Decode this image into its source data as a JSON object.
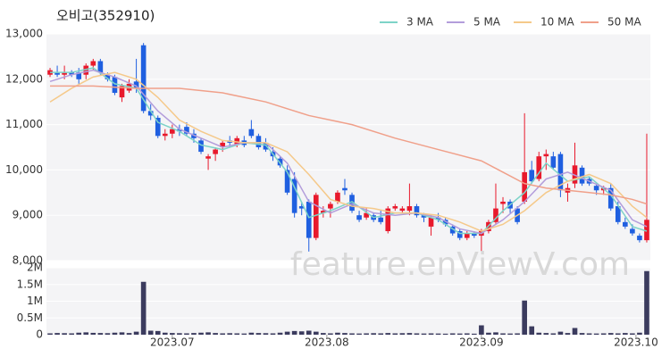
{
  "chart_data": [
    {
      "type": "candlestick",
      "title": "오비고(352910)",
      "watermark": "feature.enViewV.com",
      "xlim": [
        -0.5,
        83.5
      ],
      "ylim": [
        8000,
        13000
      ],
      "yticks": [
        {
          "value": 8000,
          "label": "8,000"
        },
        {
          "value": 9000,
          "label": "9,000"
        },
        {
          "value": 10000,
          "label": "10,000"
        },
        {
          "value": 11000,
          "label": "11,000"
        },
        {
          "value": 12000,
          "label": "12,000"
        },
        {
          "value": 13000,
          "label": "13,000"
        }
      ],
      "grid": true,
      "legend": "top-right",
      "up_color": "#e8192c",
      "down_color": "#1f5fe0",
      "open": [
        12100,
        12150,
        12100,
        12150,
        12150,
        12100,
        12300,
        12400,
        12100,
        12050,
        11600,
        11750,
        11950,
        12750,
        11300,
        11150,
        10750,
        10800,
        10900,
        10950,
        10800,
        10650,
        10250,
        10350,
        10500,
        10650,
        10550,
        10650,
        10900,
        10750,
        10600,
        10400,
        10250,
        10000,
        9800,
        9200,
        9300,
        8500,
        9050,
        9150,
        9300,
        9600,
        9450,
        9000,
        8950,
        9000,
        8950,
        8650,
        9150,
        9100,
        9100,
        9200,
        9000,
        8750,
        8950,
        8900,
        8750,
        8650,
        8500,
        8600,
        8550,
        8650,
        8850,
        9250,
        9300,
        9150,
        9300,
        10000,
        9800,
        10300,
        10300,
        10350,
        9500,
        9700,
        10050,
        9800,
        9650,
        9550,
        9600,
        9200,
        8850,
        8700,
        8550,
        8450
      ],
      "high": [
        12250,
        12300,
        12300,
        12200,
        12250,
        12350,
        12450,
        12450,
        12150,
        12100,
        11900,
        12000,
        12450,
        12800,
        11450,
        11200,
        10900,
        11000,
        11000,
        11050,
        10900,
        10700,
        10350,
        10500,
        10650,
        10750,
        10750,
        10750,
        11100,
        10800,
        10700,
        10500,
        10300,
        10100,
        9950,
        9300,
        9350,
        9500,
        9200,
        9300,
        9550,
        9800,
        9500,
        9100,
        9150,
        9050,
        9100,
        9200,
        9250,
        9200,
        9700,
        9250,
        9050,
        9000,
        9050,
        8950,
        8800,
        8700,
        8650,
        8650,
        8700,
        8900,
        9700,
        9400,
        9350,
        9200,
        11250,
        10200,
        10400,
        10450,
        10400,
        10400,
        9700,
        10600,
        10100,
        9850,
        9700,
        9650,
        9700,
        9300,
        8950,
        8800,
        8600,
        10800
      ],
      "low": [
        12050,
        12050,
        12000,
        12050,
        11900,
        12000,
        12200,
        12100,
        11950,
        11650,
        11500,
        11700,
        11700,
        11250,
        11100,
        10700,
        10650,
        10700,
        10750,
        10750,
        10600,
        10350,
        10000,
        10200,
        10400,
        10500,
        10500,
        10500,
        10700,
        10450,
        10400,
        10200,
        10050,
        9450,
        8950,
        9000,
        8200,
        8450,
        8950,
        8950,
        9250,
        9450,
        9050,
        8850,
        8900,
        8850,
        8800,
        8600,
        9100,
        9050,
        9000,
        8950,
        8850,
        8550,
        8850,
        8750,
        8550,
        8450,
        8450,
        8500,
        8200,
        8600,
        8800,
        9050,
        9050,
        8800,
        9250,
        9700,
        9750,
        10000,
        10000,
        9400,
        9300,
        9600,
        9650,
        9650,
        9450,
        9450,
        9100,
        8800,
        8700,
        8550,
        8400,
        8400
      ],
      "close": [
        12200,
        12100,
        12150,
        12100,
        12000,
        12300,
        12400,
        12150,
        12000,
        11700,
        11850,
        11900,
        11800,
        11300,
        11200,
        10750,
        10800,
        10900,
        10850,
        10800,
        10700,
        10400,
        10300,
        10450,
        10600,
        10600,
        10700,
        10550,
        10750,
        10500,
        10450,
        10300,
        10100,
        9500,
        9050,
        9150,
        8500,
        9450,
        9100,
        9250,
        9500,
        9550,
        9100,
        8900,
        9050,
        8900,
        8850,
        9150,
        9200,
        9150,
        9200,
        9000,
        8950,
        8950,
        8900,
        8800,
        8600,
        8500,
        8600,
        8550,
        8650,
        8850,
        9150,
        9300,
        9150,
        8850,
        9950,
        9750,
        10300,
        10350,
        10050,
        9550,
        9600,
        10100,
        9700,
        9700,
        9550,
        9600,
        9150,
        8850,
        8750,
        8600,
        8450,
        8900
      ],
      "series": [
        {
          "name": "3 MA",
          "color": "#7dd3c8",
          "x": [
            0,
            3,
            6,
            9,
            12,
            15,
            18,
            21,
            24,
            27,
            30,
            33,
            36,
            39,
            42,
            45,
            48,
            51,
            54,
            57,
            60,
            63,
            66,
            69,
            72,
            75,
            78,
            81,
            83
          ],
          "values": [
            12150,
            12150,
            12250,
            11900,
            11800,
            11050,
            10850,
            10550,
            10450,
            10600,
            10550,
            9950,
            8950,
            9100,
            9300,
            8950,
            9050,
            9050,
            8900,
            8600,
            8600,
            9100,
            9500,
            10150,
            9750,
            9850,
            9450,
            8750,
            8650
          ]
        },
        {
          "name": "5 MA",
          "color": "#b39ddb",
          "x": [
            0,
            3,
            6,
            9,
            12,
            15,
            18,
            21,
            24,
            27,
            30,
            33,
            36,
            39,
            42,
            45,
            48,
            51,
            54,
            57,
            60,
            63,
            66,
            69,
            72,
            75,
            78,
            81,
            83
          ],
          "values": [
            11950,
            12100,
            12200,
            12050,
            11850,
            11300,
            10900,
            10700,
            10500,
            10600,
            10600,
            10150,
            9300,
            9050,
            9250,
            9050,
            9000,
            9050,
            8950,
            8700,
            8600,
            8900,
            9300,
            9800,
            9950,
            9750,
            9550,
            8900,
            8750
          ]
        },
        {
          "name": "10 MA",
          "color": "#f5c98a",
          "x": [
            0,
            3,
            6,
            9,
            12,
            15,
            18,
            21,
            24,
            27,
            30,
            33,
            36,
            39,
            42,
            45,
            48,
            51,
            54,
            57,
            60,
            63,
            66,
            69,
            72,
            75,
            78,
            81,
            83
          ],
          "values": [
            11500,
            11800,
            12050,
            12150,
            12000,
            11600,
            11100,
            10850,
            10650,
            10600,
            10600,
            10400,
            9900,
            9350,
            9200,
            9150,
            9050,
            9050,
            9000,
            8850,
            8650,
            8800,
            9100,
            9500,
            9750,
            9900,
            9700,
            9200,
            8950
          ]
        },
        {
          "name": "50 MA",
          "color": "#f0a08a",
          "x": [
            0,
            6,
            12,
            18,
            24,
            30,
            36,
            42,
            48,
            54,
            60,
            63,
            66,
            69,
            72,
            75,
            78,
            81,
            83
          ],
          "values": [
            11850,
            11850,
            11800,
            11800,
            11700,
            11500,
            11200,
            11000,
            10700,
            10450,
            10200,
            9950,
            9700,
            9600,
            9550,
            9500,
            9450,
            9350,
            9250
          ]
        }
      ]
    },
    {
      "type": "bar",
      "color": "#3b3b5e",
      "xlim": [
        -0.5,
        83.5
      ],
      "ylim": [
        0,
        2000000
      ],
      "yticks": [
        0,
        {
          "value": 500000,
          "label": "0.5M"
        },
        {
          "value": 1000000,
          "label": "1M"
        },
        {
          "value": 1500000,
          "label": "1.5M"
        },
        {
          "value": 2000000,
          "label": "2M"
        }
      ],
      "xticks": [
        {
          "value": 17,
          "label": "2023.07"
        },
        {
          "value": 38.5,
          "label": "2023.08"
        },
        {
          "value": 60,
          "label": "2023.09"
        },
        {
          "value": 81.5,
          "label": "2023.10"
        }
      ],
      "values": [
        40000,
        50000,
        45000,
        40000,
        60000,
        70000,
        55000,
        50000,
        45000,
        60000,
        70000,
        50000,
        90000,
        1580000,
        120000,
        110000,
        60000,
        50000,
        45000,
        40000,
        50000,
        60000,
        70000,
        50000,
        40000,
        45000,
        40000,
        35000,
        60000,
        50000,
        45000,
        40000,
        60000,
        90000,
        110000,
        100000,
        120000,
        90000,
        50000,
        40000,
        60000,
        50000,
        40000,
        35000,
        40000,
        45000,
        40000,
        50000,
        40000,
        45000,
        50000,
        40000,
        35000,
        40000,
        35000,
        30000,
        40000,
        35000,
        40000,
        30000,
        280000,
        60000,
        70000,
        40000,
        35000,
        40000,
        1020000,
        250000,
        60000,
        50000,
        40000,
        90000,
        50000,
        200000,
        50000,
        40000,
        35000,
        40000,
        50000,
        40000,
        50000,
        40000,
        60000,
        1900000
      ]
    }
  ]
}
